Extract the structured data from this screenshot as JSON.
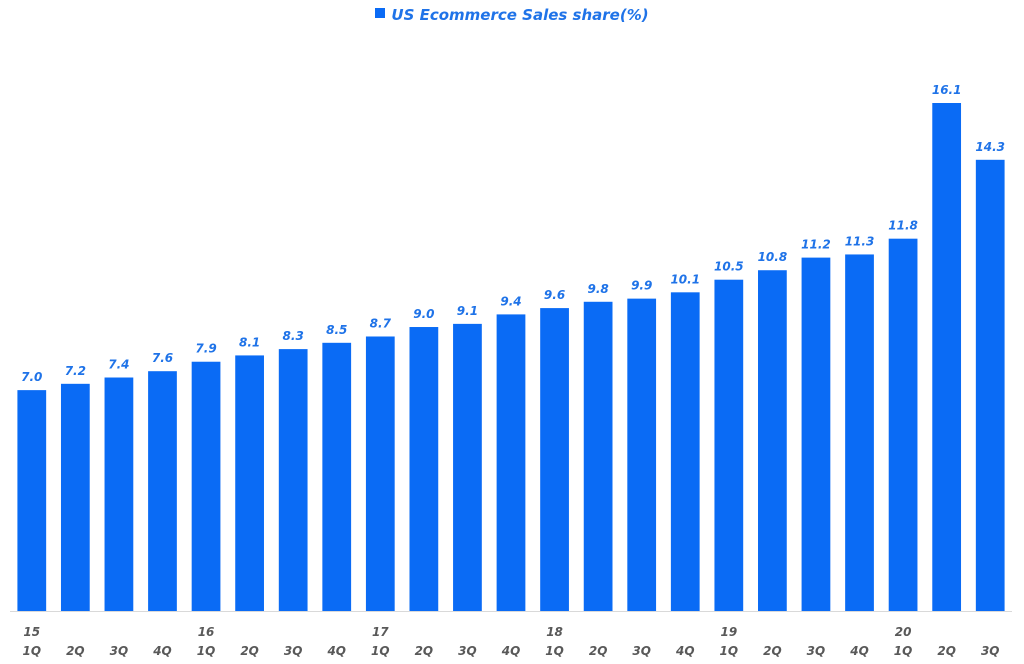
{
  "chart_data": {
    "type": "bar",
    "title": "",
    "xlabel": "",
    "ylabel": "",
    "legend": {
      "position": "top",
      "entries": [
        "US Ecommerce Sales share(%)"
      ]
    },
    "grid": false,
    "ylim": [
      0,
      17
    ],
    "categories": [
      "15 1Q",
      "2Q",
      "3Q",
      "4Q",
      "16 1Q",
      "2Q",
      "3Q",
      "4Q",
      "17 1Q",
      "2Q",
      "3Q",
      "4Q",
      "18 1Q",
      "2Q",
      "3Q",
      "4Q",
      "19 1Q",
      "2Q",
      "3Q",
      "4Q",
      "20 1Q",
      "2Q",
      "3Q"
    ],
    "tick_labels": [
      {
        "year": "15",
        "quarter": "1Q"
      },
      {
        "year": "",
        "quarter": "2Q"
      },
      {
        "year": "",
        "quarter": "3Q"
      },
      {
        "year": "",
        "quarter": "4Q"
      },
      {
        "year": "16",
        "quarter": "1Q"
      },
      {
        "year": "",
        "quarter": "2Q"
      },
      {
        "year": "",
        "quarter": "3Q"
      },
      {
        "year": "",
        "quarter": "4Q"
      },
      {
        "year": "17",
        "quarter": "1Q"
      },
      {
        "year": "",
        "quarter": "2Q"
      },
      {
        "year": "",
        "quarter": "3Q"
      },
      {
        "year": "",
        "quarter": "4Q"
      },
      {
        "year": "18",
        "quarter": "1Q"
      },
      {
        "year": "",
        "quarter": "2Q"
      },
      {
        "year": "",
        "quarter": "3Q"
      },
      {
        "year": "",
        "quarter": "4Q"
      },
      {
        "year": "19",
        "quarter": "1Q"
      },
      {
        "year": "",
        "quarter": "2Q"
      },
      {
        "year": "",
        "quarter": "3Q"
      },
      {
        "year": "",
        "quarter": "4Q"
      },
      {
        "year": "20",
        "quarter": "1Q"
      },
      {
        "year": "",
        "quarter": "2Q"
      },
      {
        "year": "",
        "quarter": "3Q"
      }
    ],
    "series": [
      {
        "name": "US Ecommerce Sales share(%)",
        "color": "#0a6bf5",
        "values": [
          7.0,
          7.2,
          7.4,
          7.6,
          7.9,
          8.1,
          8.3,
          8.5,
          8.7,
          9.0,
          9.1,
          9.4,
          9.6,
          9.8,
          9.9,
          10.1,
          10.5,
          10.8,
          11.2,
          11.3,
          11.8,
          16.1,
          14.3
        ],
        "data_labels": [
          "7.0",
          "7.2",
          "7.4",
          "7.6",
          "7.9",
          "8.1",
          "8.3",
          "8.5",
          "8.7",
          "9.0",
          "9.1",
          "9.4",
          "9.6",
          "9.8",
          "9.9",
          "10.1",
          "10.5",
          "10.8",
          "11.2",
          "11.3",
          "11.8",
          "16.1",
          "14.3"
        ]
      }
    ]
  },
  "colors": {
    "bar": "#0a6bf5",
    "data_label": "#1f73e8",
    "tick_label": "#595959",
    "axis_line": "#d9d9d9"
  }
}
